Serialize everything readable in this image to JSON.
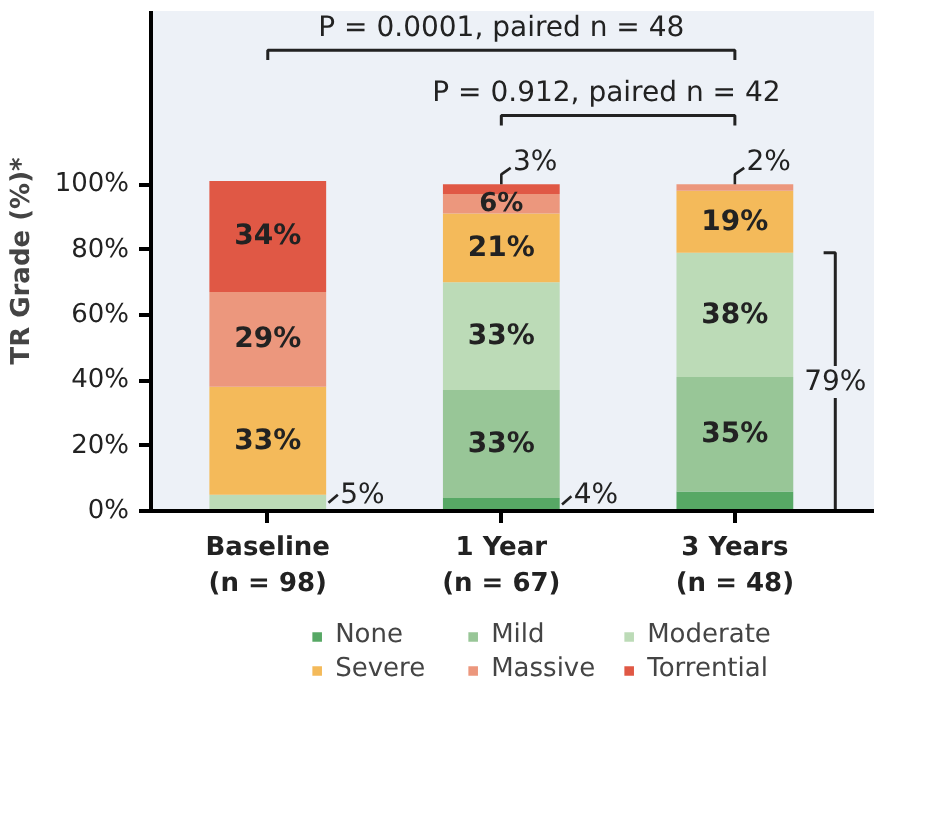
{
  "chart_data": {
    "type": "bar",
    "stacked": true,
    "ylabel": "TR Grade (%)*",
    "categories": [
      "Baseline\n(n = 98)",
      "1 Year\n(n = 67)",
      "3 Years\n(n = 48)"
    ],
    "series": [
      {
        "name": "None",
        "color": "#57a865",
        "values": [
          0,
          4,
          6
        ],
        "value_labels": [
          null,
          "4%",
          null
        ]
      },
      {
        "name": "Mild",
        "color": "#98c697",
        "values": [
          0,
          33,
          35
        ],
        "value_labels": [
          null,
          "33%",
          "35%"
        ]
      },
      {
        "name": "Moderate",
        "color": "#bcdbb7",
        "values": [
          5,
          33,
          38
        ],
        "value_labels": [
          "5%",
          "33%",
          "38%"
        ]
      },
      {
        "name": "Severe",
        "color": "#f4ba5a",
        "values": [
          33,
          21,
          19
        ],
        "value_labels": [
          "33%",
          "21%",
          "19%"
        ]
      },
      {
        "name": "Massive",
        "color": "#ec977d",
        "values": [
          29,
          6,
          2
        ],
        "value_labels": [
          "29%",
          "6%",
          "2%"
        ]
      },
      {
        "name": "Torrential",
        "color": "#e05845",
        "values": [
          34,
          3,
          0
        ],
        "value_labels": [
          "34%",
          "3%",
          null
        ]
      }
    ],
    "ylim": [
      0,
      153
    ],
    "yticks": [
      {
        "value": 0,
        "label": "0%"
      },
      {
        "value": 20,
        "label": "20%"
      },
      {
        "value": 40,
        "label": "40%"
      },
      {
        "value": 60,
        "label": "60%"
      },
      {
        "value": 80,
        "label": "80%"
      },
      {
        "value": 100,
        "label": "100%"
      }
    ],
    "grid": false,
    "legend": "bottom",
    "annotations": [
      "P = 0.0001, paired n = 48",
      "P = 0.912, paired n = 42",
      "79%"
    ]
  }
}
